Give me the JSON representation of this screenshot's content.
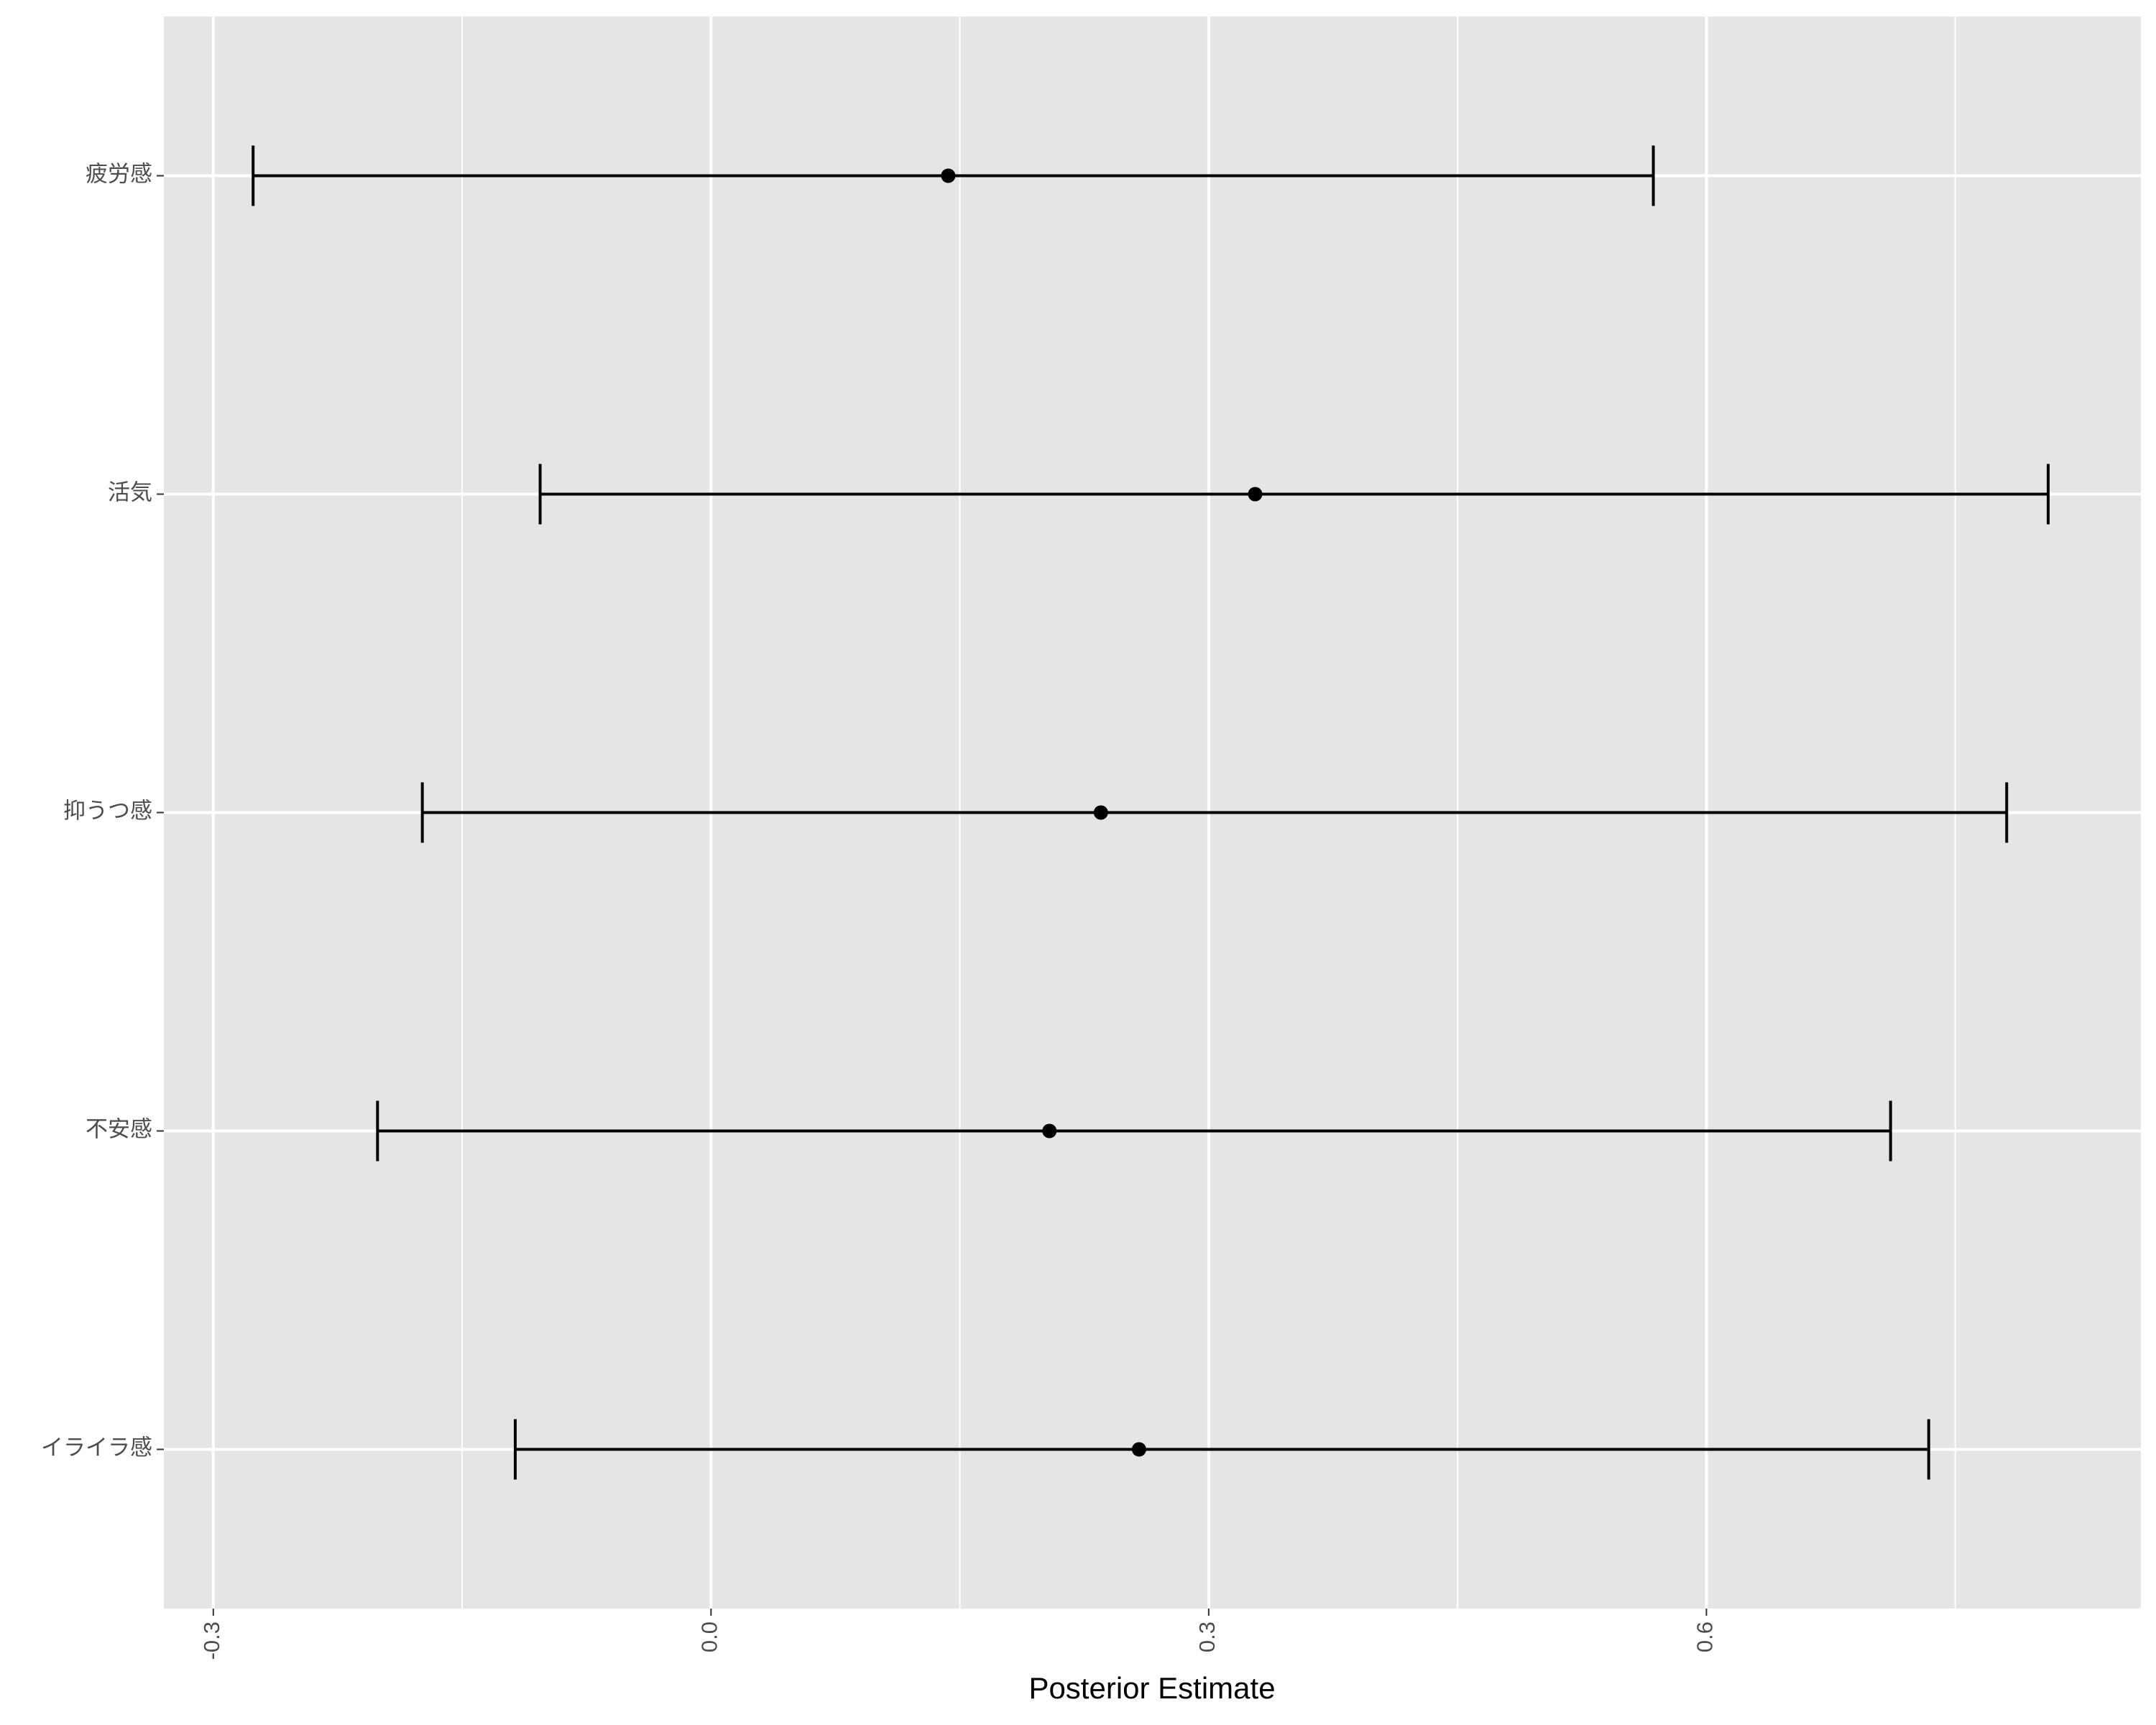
{
  "chart_data": {
    "type": "errorbar",
    "x_label": "Posterior Estimate",
    "categories": [
      "イライラ感",
      "不安感",
      "抑うつ感",
      "活気",
      "疲労感"
    ],
    "values": [
      0.258,
      0.204,
      0.235,
      0.328,
      0.143
    ],
    "lower": [
      -0.118,
      -0.201,
      -0.174,
      -0.103,
      -0.276
    ],
    "upper": [
      0.734,
      0.711,
      0.781,
      0.806,
      0.568
    ],
    "color": "#000000",
    "panel_color": "#e5e5e5",
    "grid": true,
    "xlim": [
      -0.3298,
      0.8619
    ],
    "xticks": [
      {
        "value": -0.3,
        "label": "-0.3"
      },
      {
        "value": 0,
        "label": "0.0"
      },
      {
        "value": 0.3,
        "label": "0.3"
      },
      {
        "value": 0.6,
        "label": "0.6"
      }
    ],
    "xminor": [
      -0.15,
      0.15,
      0.45,
      0.75
    ]
  }
}
